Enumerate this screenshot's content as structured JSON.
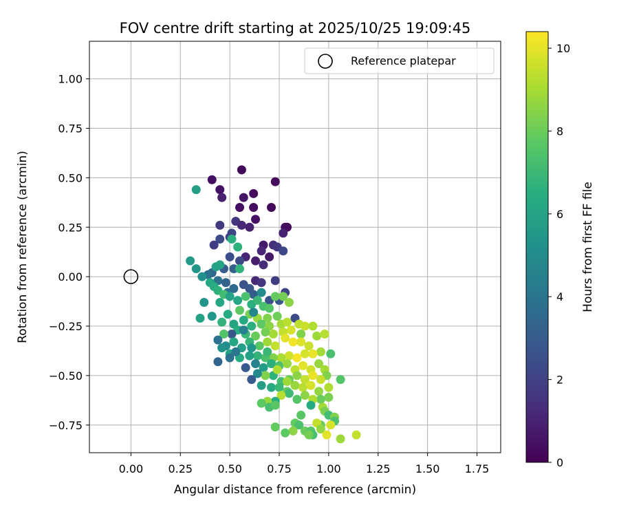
{
  "chart_data": {
    "type": "scatter",
    "title": "FOV centre drift starting at 2025/10/25 19:09:45",
    "xlabel": "Angular distance from reference (arcmin)",
    "ylabel": "Rotation from reference (arcmin)",
    "xlim": [
      -0.21,
      1.87
    ],
    "ylim": [
      -0.89,
      1.19
    ],
    "xticks": [
      0.0,
      0.25,
      0.5,
      0.75,
      1.0,
      1.25,
      1.5,
      1.75
    ],
    "xtick_labels": [
      "0.00",
      "0.25",
      "0.50",
      "0.75",
      "1.00",
      "1.25",
      "1.50",
      "1.75"
    ],
    "yticks": [
      1.0,
      0.75,
      0.5,
      0.25,
      0.0,
      -0.25,
      -0.5,
      -0.75
    ],
    "ytick_labels": [
      "1.00",
      "0.75",
      "0.50",
      "0.25",
      "0.00",
      "−0.25",
      "−0.50",
      "−0.75"
    ],
    "grid": true,
    "legend": {
      "placement": "top-right",
      "entries": [
        "Reference platepar"
      ]
    },
    "reference_point": {
      "x": 0.0,
      "y": 0.0,
      "marker": "open-circle"
    },
    "colorbar": {
      "label": "Hours from first FF file",
      "range": [
        0,
        10.4
      ],
      "ticks": [
        0,
        2,
        4,
        6,
        8,
        10
      ],
      "tick_labels": [
        "0",
        "2",
        "4",
        "6",
        "8",
        "10"
      ],
      "colormap": "viridis"
    },
    "points": [
      [
        0.56,
        0.54,
        0.2
      ],
      [
        0.41,
        0.49,
        0.4
      ],
      [
        0.73,
        0.48,
        0.3
      ],
      [
        0.45,
        0.44,
        0.5
      ],
      [
        0.62,
        0.42,
        0.3
      ],
      [
        0.46,
        0.4,
        1.0
      ],
      [
        0.57,
        0.4,
        0.6
      ],
      [
        0.55,
        0.35,
        0.4
      ],
      [
        0.62,
        0.35,
        0.3
      ],
      [
        0.71,
        0.35,
        0.2
      ],
      [
        0.63,
        0.29,
        0.5
      ],
      [
        0.53,
        0.28,
        1.6
      ],
      [
        0.56,
        0.26,
        1.2
      ],
      [
        0.6,
        0.25,
        1.0
      ],
      [
        0.45,
        0.26,
        1.8
      ],
      [
        0.78,
        0.25,
        0.6
      ],
      [
        0.79,
        0.25,
        0.3
      ],
      [
        0.77,
        0.22,
        1.0
      ],
      [
        0.51,
        0.22,
        2.2
      ],
      [
        0.5,
        0.2,
        2.0
      ],
      [
        0.45,
        0.19,
        2.4
      ],
      [
        0.42,
        0.16,
        1.9
      ],
      [
        0.67,
        0.16,
        0.8
      ],
      [
        0.72,
        0.16,
        1.4
      ],
      [
        0.74,
        0.15,
        1.7
      ],
      [
        0.77,
        0.13,
        2.3
      ],
      [
        0.66,
        0.13,
        1.2
      ],
      [
        0.58,
        0.1,
        1.1
      ],
      [
        0.7,
        0.1,
        0.7
      ],
      [
        0.63,
        0.08,
        0.9
      ],
      [
        0.67,
        0.06,
        1.3
      ],
      [
        0.5,
        0.1,
        2.5
      ],
      [
        0.55,
        0.08,
        2.4
      ],
      [
        0.47,
        0.04,
        3.0
      ],
      [
        0.52,
        0.04,
        3.2
      ],
      [
        0.41,
        0.02,
        3.5
      ],
      [
        0.39,
        0.01,
        3.8
      ],
      [
        0.44,
        -0.02,
        3.9
      ],
      [
        0.48,
        -0.03,
        3.3
      ],
      [
        0.57,
        -0.04,
        2.7
      ],
      [
        0.63,
        -0.02,
        1.2
      ],
      [
        0.66,
        -0.03,
        1.6
      ],
      [
        0.73,
        -0.02,
        1.9
      ],
      [
        0.78,
        -0.08,
        2.1
      ],
      [
        0.6,
        -0.06,
        2.9
      ],
      [
        0.52,
        -0.06,
        3.6
      ],
      [
        0.49,
        -0.08,
        3.8
      ],
      [
        0.62,
        -0.09,
        3.1
      ],
      [
        0.7,
        -0.12,
        2.6
      ],
      [
        0.75,
        -0.12,
        2.9
      ],
      [
        0.3,
        0.08,
        5.6
      ],
      [
        0.33,
        0.04,
        5.5
      ],
      [
        0.36,
        0.0,
        5.2
      ],
      [
        0.43,
        0.05,
        5.9
      ],
      [
        0.45,
        0.06,
        6.1
      ],
      [
        0.51,
        0.19,
        6.6
      ],
      [
        0.54,
        0.15,
        6.7
      ],
      [
        0.55,
        0.04,
        6.8
      ],
      [
        0.33,
        0.44,
        5.8
      ],
      [
        0.4,
        -0.03,
        6.3
      ],
      [
        0.42,
        -0.05,
        6.5
      ],
      [
        0.44,
        -0.07,
        6.7
      ],
      [
        0.47,
        -0.09,
        7.2
      ],
      [
        0.5,
        -0.1,
        6.0
      ],
      [
        0.54,
        -0.12,
        6.2
      ],
      [
        0.58,
        -0.1,
        7.4
      ],
      [
        0.61,
        -0.14,
        6.6
      ],
      [
        0.64,
        -0.12,
        7.0
      ],
      [
        0.67,
        -0.15,
        7.3
      ],
      [
        0.7,
        -0.16,
        7.6
      ],
      [
        0.73,
        -0.1,
        7.9
      ],
      [
        0.77,
        -0.1,
        8.2
      ],
      [
        0.8,
        -0.13,
        8.6
      ],
      [
        0.74,
        -0.2,
        8.1
      ],
      [
        0.69,
        -0.21,
        8.4
      ],
      [
        0.64,
        -0.21,
        8.8
      ],
      [
        0.6,
        -0.19,
        8.3
      ],
      [
        0.55,
        -0.17,
        7.8
      ],
      [
        0.45,
        -0.13,
        6.2
      ],
      [
        0.37,
        -0.13,
        5.4
      ],
      [
        0.35,
        -0.21,
        6.0
      ],
      [
        0.41,
        -0.2,
        5.5
      ],
      [
        0.46,
        -0.23,
        6.8
      ],
      [
        0.49,
        -0.19,
        6.4
      ],
      [
        0.52,
        -0.24,
        6.1
      ],
      [
        0.57,
        -0.22,
        6.3
      ],
      [
        0.61,
        -0.25,
        6.6
      ],
      [
        0.66,
        -0.24,
        7.8
      ],
      [
        0.7,
        -0.25,
        8.6
      ],
      [
        0.76,
        -0.24,
        9.0
      ],
      [
        0.79,
        -0.23,
        9.3
      ],
      [
        0.83,
        -0.21,
        2.4
      ],
      [
        0.85,
        -0.24,
        9.4
      ],
      [
        0.88,
        -0.25,
        9.6
      ],
      [
        0.92,
        -0.25,
        9.2
      ],
      [
        0.86,
        -0.29,
        8.4
      ],
      [
        0.81,
        -0.27,
        9.8
      ],
      [
        0.77,
        -0.28,
        9.5
      ],
      [
        0.72,
        -0.29,
        9.0
      ],
      [
        0.68,
        -0.28,
        8.2
      ],
      [
        0.63,
        -0.3,
        8.0
      ],
      [
        0.58,
        -0.29,
        7.0
      ],
      [
        0.54,
        -0.27,
        6.5
      ],
      [
        0.51,
        -0.29,
        2.9
      ],
      [
        0.47,
        -0.29,
        7.6
      ],
      [
        0.44,
        -0.32,
        4.0
      ],
      [
        0.48,
        -0.35,
        5.0
      ],
      [
        0.52,
        -0.33,
        6.2
      ],
      [
        0.56,
        -0.36,
        5.8
      ],
      [
        0.6,
        -0.33,
        6.9
      ],
      [
        0.65,
        -0.35,
        7.7
      ],
      [
        0.69,
        -0.33,
        8.9
      ],
      [
        0.73,
        -0.35,
        9.5
      ],
      [
        0.78,
        -0.31,
        10.0
      ],
      [
        0.82,
        -0.33,
        10.2
      ],
      [
        0.86,
        -0.33,
        9.9
      ],
      [
        0.9,
        -0.35,
        9.6
      ],
      [
        0.94,
        -0.3,
        8.9
      ],
      [
        0.98,
        -0.29,
        9.3
      ],
      [
        0.96,
        -0.38,
        9.0
      ],
      [
        0.92,
        -0.39,
        10.1
      ],
      [
        0.88,
        -0.39,
        9.8
      ],
      [
        0.84,
        -0.41,
        10.3
      ],
      [
        0.8,
        -0.4,
        9.7
      ],
      [
        0.76,
        -0.41,
        9.1
      ],
      [
        0.72,
        -0.41,
        8.4
      ],
      [
        0.68,
        -0.41,
        7.4
      ],
      [
        0.64,
        -0.4,
        6.8
      ],
      [
        0.6,
        -0.4,
        5.9
      ],
      [
        0.55,
        -0.41,
        6.4
      ],
      [
        0.5,
        -0.39,
        6.1
      ],
      [
        0.46,
        -0.36,
        5.2
      ],
      [
        0.44,
        -0.43,
        3.4
      ],
      [
        0.58,
        -0.46,
        3.0
      ],
      [
        0.63,
        -0.44,
        4.6
      ],
      [
        0.67,
        -0.46,
        5.7
      ],
      [
        0.71,
        -0.44,
        6.6
      ],
      [
        0.75,
        -0.45,
        7.4
      ],
      [
        0.79,
        -0.44,
        8.8
      ],
      [
        0.83,
        -0.47,
        9.4
      ],
      [
        0.87,
        -0.45,
        10.0
      ],
      [
        0.91,
        -0.47,
        9.7
      ],
      [
        0.95,
        -0.44,
        8.8
      ],
      [
        0.98,
        -0.47,
        9.0
      ],
      [
        1.01,
        -0.39,
        7.3
      ],
      [
        0.99,
        -0.5,
        8.4
      ],
      [
        0.96,
        -0.52,
        9.6
      ],
      [
        0.92,
        -0.5,
        10.1
      ],
      [
        0.88,
        -0.52,
        9.5
      ],
      [
        0.84,
        -0.5,
        8.6
      ],
      [
        0.8,
        -0.52,
        8.0
      ],
      [
        0.76,
        -0.53,
        7.2
      ],
      [
        0.72,
        -0.5,
        6.7
      ],
      [
        0.68,
        -0.5,
        8.4
      ],
      [
        0.64,
        -0.49,
        4.9
      ],
      [
        0.61,
        -0.52,
        3.0
      ],
      [
        0.66,
        -0.55,
        5.8
      ],
      [
        0.71,
        -0.56,
        6.4
      ],
      [
        0.75,
        -0.56,
        7.0
      ],
      [
        0.79,
        -0.58,
        7.9
      ],
      [
        0.83,
        -0.55,
        8.8
      ],
      [
        0.87,
        -0.56,
        9.3
      ],
      [
        0.91,
        -0.55,
        9.8
      ],
      [
        0.95,
        -0.58,
        8.7
      ],
      [
        1.0,
        -0.56,
        9.2
      ],
      [
        1.06,
        -0.52,
        7.6
      ],
      [
        1.0,
        -0.61,
        8.3
      ],
      [
        0.96,
        -0.62,
        8.0
      ],
      [
        0.92,
        -0.62,
        9.2
      ],
      [
        0.88,
        -0.6,
        8.6
      ],
      [
        0.84,
        -0.62,
        7.6
      ],
      [
        0.8,
        -0.59,
        7.1
      ],
      [
        0.76,
        -0.6,
        9.3
      ],
      [
        0.73,
        -0.63,
        6.5
      ],
      [
        0.69,
        -0.63,
        8.8
      ],
      [
        0.66,
        -0.64,
        7.8
      ],
      [
        0.7,
        -0.66,
        7.3
      ],
      [
        0.73,
        -0.65,
        7.7
      ],
      [
        0.91,
        -0.65,
        6.4
      ],
      [
        0.97,
        -0.66,
        9.0
      ],
      [
        0.98,
        -0.68,
        8.3
      ],
      [
        1.0,
        -0.7,
        7.2
      ],
      [
        1.03,
        -0.71,
        8.4
      ],
      [
        1.03,
        -0.73,
        7.4
      ],
      [
        1.01,
        -0.75,
        9.8
      ],
      [
        0.96,
        -0.75,
        8.0
      ],
      [
        0.94,
        -0.74,
        9.5
      ],
      [
        0.83,
        -0.74,
        7.9
      ],
      [
        0.85,
        -0.75,
        7.4
      ],
      [
        0.73,
        -0.76,
        7.9
      ],
      [
        0.82,
        -0.78,
        8.6
      ],
      [
        0.88,
        -0.78,
        8.0
      ],
      [
        0.91,
        -0.78,
        7.6
      ],
      [
        0.96,
        -0.77,
        8.7
      ],
      [
        0.92,
        -0.8,
        7.3
      ],
      [
        0.9,
        -0.8,
        8.2
      ],
      [
        0.99,
        -0.8,
        10.0
      ],
      [
        1.06,
        -0.82,
        8.9
      ],
      [
        1.14,
        -0.8,
        9.5
      ],
      [
        0.78,
        -0.79,
        7.8
      ],
      [
        0.86,
        -0.7,
        7.7
      ],
      [
        0.79,
        -0.53,
        8.9
      ],
      [
        0.74,
        -0.47,
        9.2
      ],
      [
        0.69,
        -0.38,
        7.0
      ],
      [
        0.61,
        -0.36,
        5.4
      ],
      [
        0.53,
        -0.38,
        4.2
      ],
      [
        0.5,
        -0.41,
        3.9
      ],
      [
        0.57,
        -0.27,
        4.5
      ],
      [
        0.62,
        -0.18,
        4.8
      ],
      [
        0.66,
        -0.08,
        5.0
      ]
    ]
  }
}
